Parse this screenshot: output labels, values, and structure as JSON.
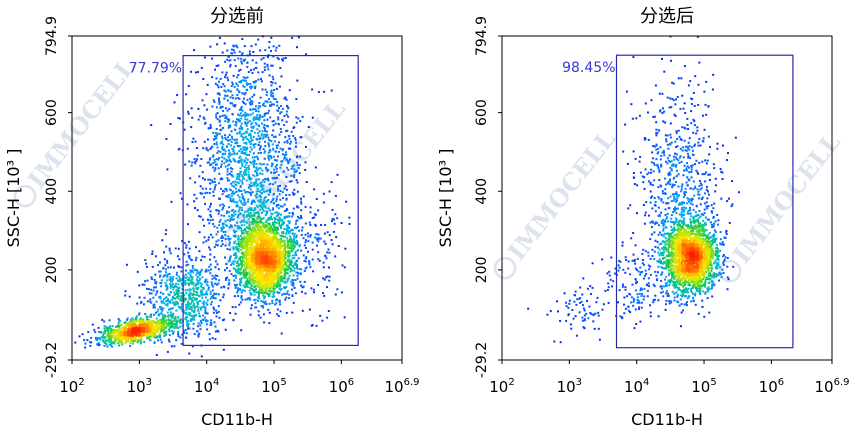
{
  "figure": {
    "watermark": "IMMOCELL",
    "colors": {
      "gate": "#2a2ab0",
      "gate_label": "#3a3ad0",
      "density_colormap": [
        "#0818e0",
        "#0a50ff",
        "#00b4f0",
        "#10c850",
        "#b4e600",
        "#ffe600",
        "#ff8c00",
        "#ff1e00"
      ]
    }
  },
  "chart_data": [
    {
      "type": "scatter",
      "plot_style": "density",
      "title": "分选前",
      "xlabel": "CD11b-H",
      "ylabel": "SSC-H [10³ ]",
      "x_scale": "log",
      "xlim_log10": [
        2,
        6.9
      ],
      "ylim": [
        -29.2,
        794.9
      ],
      "x_ticks": [
        {
          "base": "10",
          "exp": "2",
          "log10": 2
        },
        {
          "base": "10",
          "exp": "3",
          "log10": 3
        },
        {
          "base": "10",
          "exp": "4",
          "log10": 4
        },
        {
          "base": "10",
          "exp": "5",
          "log10": 5
        },
        {
          "base": "10",
          "exp": "6",
          "log10": 6
        },
        {
          "base": "10",
          "exp": "6.9",
          "log10": 6.9
        }
      ],
      "y_ticks": [
        {
          "label": "794.9",
          "value": 794.9
        },
        {
          "label": "600",
          "value": 600
        },
        {
          "label": "400",
          "value": 400
        },
        {
          "label": "200",
          "value": 200
        },
        {
          "label": "-29.2",
          "value": -29.2
        }
      ],
      "gate": {
        "x_log10": [
          3.65,
          6.25
        ],
        "y": [
          8,
          745
        ],
        "label": "77.79%"
      },
      "populations": [
        {
          "x_log10_center": 4.87,
          "y_center": 228,
          "x_log10_sd": 0.22,
          "y_sd": 50,
          "count": 2300
        },
        {
          "x_log10_center": 4.6,
          "y_center": 470,
          "x_log10_sd": 0.38,
          "y_sd": 170,
          "count": 1500,
          "y_range": [
            260,
            794.9
          ]
        },
        {
          "x_log10_center": 2.95,
          "y_center": 45,
          "x_log10_sd": 0.28,
          "y_sd": 14,
          "count": 1000,
          "y_slope_per_log10": 30
        },
        {
          "x_log10_center": 3.7,
          "y_center": 130,
          "x_log10_sd": 0.3,
          "y_sd": 55,
          "count": 700
        },
        {
          "x_log10_center": 5.6,
          "y_center": 250,
          "x_log10_sd": 0.25,
          "y_sd": 90,
          "count": 150
        }
      ]
    },
    {
      "type": "scatter",
      "plot_style": "density",
      "title": "分选后",
      "xlabel": "CD11b-H",
      "ylabel": "SSC-H [10³ ]",
      "x_scale": "log",
      "xlim_log10": [
        2,
        6.9
      ],
      "ylim": [
        -29.2,
        794.9
      ],
      "x_ticks": [
        {
          "base": "10",
          "exp": "2",
          "log10": 2
        },
        {
          "base": "10",
          "exp": "3",
          "log10": 3
        },
        {
          "base": "10",
          "exp": "4",
          "log10": 4
        },
        {
          "base": "10",
          "exp": "5",
          "log10": 5
        },
        {
          "base": "10",
          "exp": "6",
          "log10": 6
        },
        {
          "base": "10",
          "exp": "6.9",
          "log10": 6.9
        }
      ],
      "y_ticks": [
        {
          "label": "794.9",
          "value": 794.9
        },
        {
          "label": "600",
          "value": 600
        },
        {
          "label": "400",
          "value": 400
        },
        {
          "label": "200",
          "value": 200
        },
        {
          "label": "-29.2",
          "value": -29.2
        }
      ],
      "gate": {
        "x_log10": [
          3.7,
          6.32
        ],
        "y": [
          2,
          746
        ],
        "label": "98.45%"
      },
      "populations": [
        {
          "x_log10_center": 4.8,
          "y_center": 232,
          "x_log10_sd": 0.2,
          "y_sd": 46,
          "count": 2100
        },
        {
          "x_log10_center": 4.6,
          "y_center": 420,
          "x_log10_sd": 0.3,
          "y_sd": 140,
          "count": 550,
          "y_range": [
            270,
            794.9
          ]
        },
        {
          "x_log10_center": 3.15,
          "y_center": 95,
          "x_log10_sd": 0.25,
          "y_sd": 30,
          "count": 70
        },
        {
          "x_log10_center": 4.0,
          "y_center": 160,
          "x_log10_sd": 0.25,
          "y_sd": 50,
          "count": 150
        }
      ]
    }
  ]
}
